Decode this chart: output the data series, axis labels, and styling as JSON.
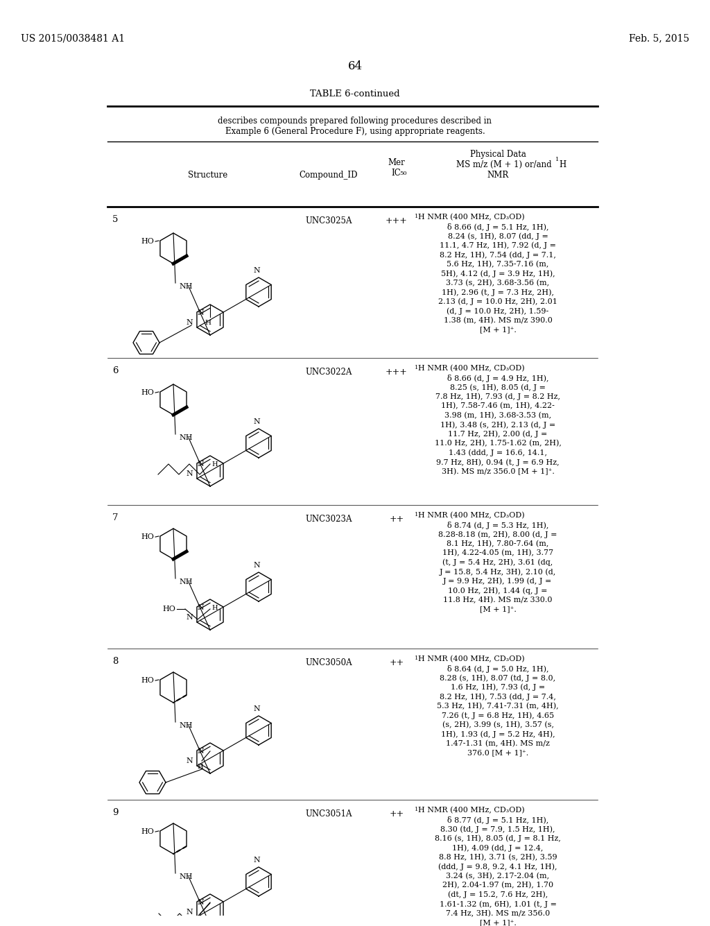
{
  "page_header_left": "US 2015/0038481 A1",
  "page_header_right": "Feb. 5, 2015",
  "page_number": "64",
  "table_title": "TABLE 6-continued",
  "table_subtitle_line1": "describes compounds prepared following procedures described in",
  "table_subtitle_line2": "Example 6 (General Procedure F), using appropriate reagents.",
  "rows": [
    {
      "num": "5",
      "compound_id": "UNC3025A",
      "mer": "+++",
      "nmr_lines": [
        "¹H NMR (400 MHz, CD₃OD)",
        "δ 8.66 (d, J = 5.1 Hz, 1H),",
        "8.24 (s, 1H), 8.07 (dd, J =",
        "11.1, 4.7 Hz, 1H), 7.92 (d, J =",
        "8.2 Hz, 1H), 7.54 (dd, J = 7.1,",
        "5.6 Hz, 1H), 7.35-7.16 (m,",
        "5H), 4.12 (d, J = 3.9 Hz, 1H),",
        "3.73 (s, 2H), 3.68-3.56 (m,",
        "1H), 2.96 (t, J = 7.3 Hz, 2H),",
        "2.13 (d, J = 10.0 Hz, 2H), 2.01",
        "(d, J = 10.0 Hz, 2H), 1.59-",
        "1.38 (m, 4H). MS m/z 390.0",
        "[M + 1]⁺."
      ]
    },
    {
      "num": "6",
      "compound_id": "UNC3022A",
      "mer": "+++",
      "nmr_lines": [
        "¹H NMR (400 MHz, CD₃OD)",
        "δ 8.66 (d, J = 4.9 Hz, 1H),",
        "8.25 (s, 1H), 8.05 (d, J =",
        "7.8 Hz, 1H), 7.93 (d, J = 8.2 Hz,",
        "1H), 7.58-7.46 (m, 1H), 4.22-",
        "3.98 (m, 1H), 3.68-3.53 (m,",
        "1H), 3.48 (s, 2H), 2.13 (d, J =",
        "11.7 Hz, 2H), 2.00 (d, J =",
        "11.0 Hz, 2H), 1.75-1.62 (m, 2H),",
        "1.43 (ddd, J = 16.6, 14.1,",
        "9.7 Hz, 8H), 0.94 (t, J = 6.9 Hz,",
        "3H). MS m/z 356.0 [M + 1]⁺."
      ]
    },
    {
      "num": "7",
      "compound_id": "UNC3023A",
      "mer": "++",
      "nmr_lines": [
        "¹H NMR (400 MHz, CD₃OD)",
        "δ 8.74 (d, J = 5.3 Hz, 1H),",
        "8.28-8.18 (m, 2H), 8.00 (d, J =",
        "8.1 Hz, 1H), 7.80-7.64 (m,",
        "1H), 4.22-4.05 (m, 1H), 3.77",
        "(t, J = 5.4 Hz, 2H), 3.61 (dq,",
        "J = 15.8, 5.4 Hz, 3H), 2.10 (d,",
        "J = 9.9 Hz, 2H), 1.99 (d, J =",
        "10.0 Hz, 2H), 1.44 (q, J =",
        "11.8 Hz, 4H). MS m/z 330.0",
        "[M + 1]⁺."
      ]
    },
    {
      "num": "8",
      "compound_id": "UNC3050A",
      "mer": "++",
      "nmr_lines": [
        "¹H NMR (400 MHz, CD₃OD)",
        "δ 8.64 (d, J = 5.0 Hz, 1H),",
        "8.28 (s, 1H), 8.07 (td, J = 8.0,",
        "1.6 Hz, 1H), 7.93 (d, J =",
        "8.2 Hz, 1H), 7.53 (dd, J = 7.4,",
        "5.3 Hz, 1H), 7.41-7.31 (m, 4H),",
        "7.26 (t, J = 6.8 Hz, 1H), 4.65",
        "(s, 2H), 3.99 (s, 1H), 3.57 (s,",
        "1H), 1.93 (d, J = 5.2 Hz, 4H),",
        "1.47-1.31 (m, 4H). MS m/z",
        "376.0 [M + 1]⁺."
      ]
    },
    {
      "num": "9",
      "compound_id": "UNC3051A",
      "mer": "++",
      "nmr_lines": [
        "¹H NMR (400 MHz, CD₃OD)",
        "δ 8.77 (d, J = 5.1 Hz, 1H),",
        "8.30 (td, J = 7.9, 1.5 Hz, 1H),",
        "8.16 (s, 1H), 8.05 (d, J = 8.1 Hz,",
        "1H), 4.09 (dd, J = 12.4,",
        "8.8 Hz, 1H), 3.71 (s, 2H), 3.59",
        "(ddd, J = 9.8, 9.2, 4.1 Hz, 1H),",
        "3.24 (s, 3H), 2.17-2.04 (m,",
        "2H), 2.04-1.97 (m, 2H), 1.70",
        "(dt, J = 15.2, 7.6 Hz, 2H),",
        "1.61-1.32 (m, 6H), 1.01 (t, J =",
        "7.4 Hz, 3H). MS m/z 356.0",
        "[M + 1]⁺."
      ]
    }
  ]
}
